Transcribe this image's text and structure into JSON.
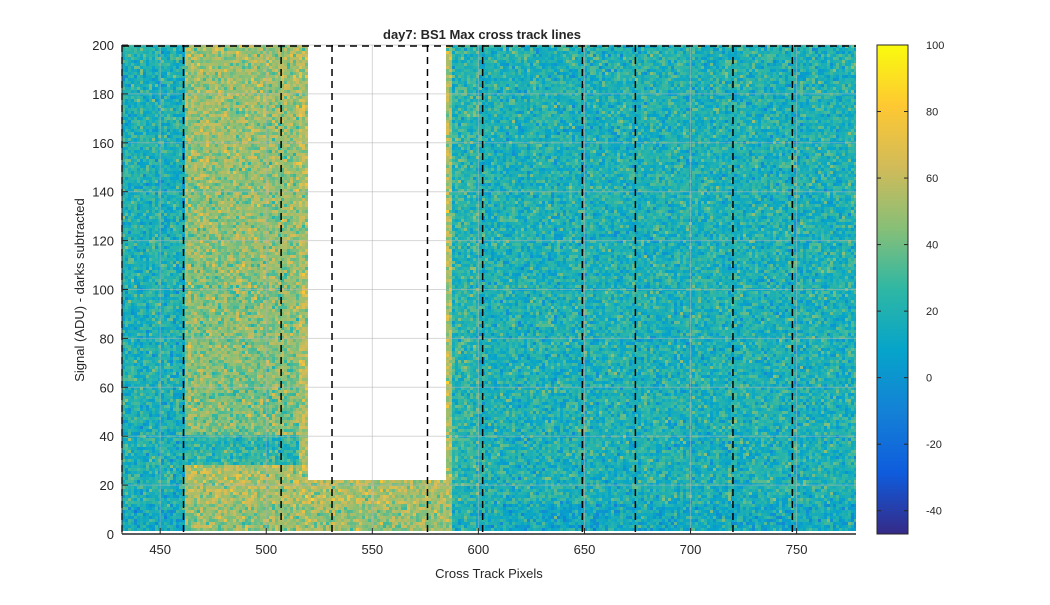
{
  "chart_data": {
    "type": "heatmap",
    "title": "day7: BS1  Max cross track lines",
    "xlabel": "Cross Track Pixels",
    "ylabel": "Signal (ADU) - darks subtracted",
    "xlim": [
      432,
      778
    ],
    "ylim": [
      0,
      200
    ],
    "xticks": [
      450,
      500,
      550,
      600,
      650,
      700,
      750
    ],
    "yticks": [
      0,
      20,
      40,
      60,
      80,
      100,
      120,
      140,
      160,
      180,
      200
    ],
    "grid": true,
    "colorbar": {
      "colormap": "parula",
      "limits": [
        -47,
        100
      ],
      "ticks": [
        -40,
        -20,
        0,
        20,
        40,
        60,
        80,
        100
      ]
    },
    "saturated_region": {
      "x": [
        519,
        585
      ],
      "floor_signal": 22
    },
    "warm_regions": [
      {
        "x": [
          462,
          518
        ],
        "y": [
          40,
          200
        ],
        "level": 55
      },
      {
        "x": [
          462,
          520
        ],
        "y": [
          0,
          28
        ],
        "level": 65
      }
    ],
    "vertical_dashed_lines": [
      432,
      461,
      507,
      531,
      576,
      602,
      649,
      674,
      720,
      748
    ]
  }
}
